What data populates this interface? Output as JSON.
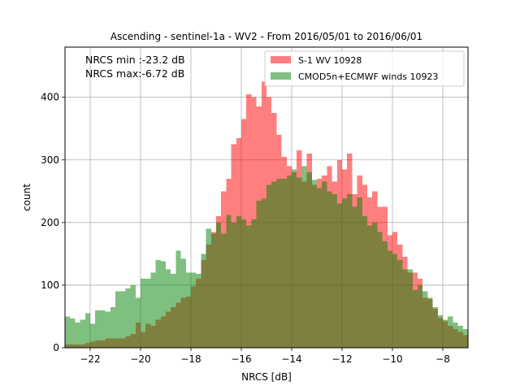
{
  "chart_data": {
    "type": "bar",
    "title": "Ascending - sentinel-1a - WV2 - From 2016/05/01 to 2016/06/01",
    "xlabel": "NRCS [dB]",
    "ylabel": "count",
    "xlim": [
      -23.0,
      -7.0
    ],
    "ylim": [
      0,
      480
    ],
    "xticks": [
      -22,
      -20,
      -18,
      -16,
      -14,
      -12,
      -10,
      -8
    ],
    "xtick_labels": [
      "−22",
      "−20",
      "−18",
      "−16",
      "−14",
      "−12",
      "−10",
      "−8"
    ],
    "yticks": [
      0,
      100,
      200,
      300,
      400
    ],
    "ytick_labels": [
      "0",
      "100",
      "200",
      "300",
      "400"
    ],
    "grid": true,
    "legend_position": "top-right",
    "annotations": [
      "NRCS min :-23.2 dB",
      "NRCS max:-6.72 dB"
    ],
    "bin_start": -23.0,
    "bin_width": 0.2,
    "series": [
      {
        "name": "S-1 WV 10928",
        "color": "#ff0000",
        "opacity": 0.5,
        "values": [
          5,
          5,
          5,
          5,
          8,
          10,
          12,
          12,
          15,
          15,
          15,
          15,
          18,
          22,
          40,
          25,
          38,
          35,
          45,
          50,
          58,
          65,
          72,
          80,
          82,
          98,
          110,
          140,
          165,
          185,
          210,
          250,
          270,
          325,
          335,
          365,
          405,
          400,
          385,
          425,
          400,
          375,
          340,
          305,
          290,
          280,
          315,
          265,
          310,
          260,
          270,
          275,
          290,
          265,
          300,
          285,
          310,
          245,
          275,
          260,
          240,
          250,
          225,
          225,
          180,
          185,
          165,
          145,
          120,
          120,
          110,
          80,
          78,
          62,
          48,
          42,
          35,
          30,
          25,
          20,
          15,
          15,
          12,
          8,
          5
        ]
      },
      {
        "name": "CMOD5n+ECMWF winds 10923",
        "color": "#008000",
        "opacity": 0.5,
        "values": [
          50,
          47,
          40,
          45,
          55,
          38,
          60,
          60,
          58,
          65,
          90,
          90,
          95,
          100,
          80,
          110,
          110,
          120,
          140,
          138,
          125,
          118,
          155,
          142,
          120,
          120,
          118,
          150,
          190,
          182,
          200,
          182,
          212,
          200,
          210,
          205,
          195,
          205,
          235,
          238,
          260,
          265,
          270,
          270,
          275,
          285,
          272,
          290,
          280,
          268,
          255,
          265,
          250,
          245,
          230,
          238,
          245,
          225,
          240,
          210,
          195,
          200,
          185,
          170,
          155,
          150,
          140,
          125,
          125,
          92,
          100,
          90,
          80,
          65,
          52,
          45,
          50,
          40,
          35,
          30,
          28,
          22,
          20,
          18,
          15
        ]
      }
    ]
  }
}
